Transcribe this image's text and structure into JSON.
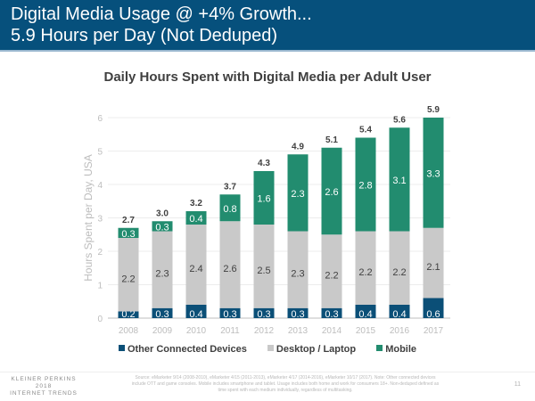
{
  "header": {
    "line1": "Digital Media Usage @ +4% Growth...",
    "line2": "5.9 Hours per Day (Not Deduped)"
  },
  "colors": {
    "header_bg": "#06507c",
    "other": "#0b4f77",
    "desktop": "#c9c9c9",
    "mobile": "#228c6f"
  },
  "chart_data": {
    "type": "bar",
    "stacked": true,
    "title": "Daily Hours Spent with Digital Media per Adult User",
    "xlabel": "",
    "ylabel": "Hours Spent per Day, USA",
    "ylim": [
      0,
      6
    ],
    "yticks": [
      "0",
      "1",
      "2",
      "3",
      "4",
      "5",
      "6"
    ],
    "grid": true,
    "legend_position": "bottom",
    "categories": [
      "2008",
      "2009",
      "2010",
      "2011",
      "2012",
      "2013",
      "2014",
      "2015",
      "2016",
      "2017"
    ],
    "series": [
      {
        "name": "Other Connected Devices",
        "values": [
          0.2,
          0.3,
          0.4,
          0.3,
          0.3,
          0.3,
          0.3,
          0.4,
          0.4,
          0.6
        ]
      },
      {
        "name": "Desktop / Laptop",
        "values": [
          2.2,
          2.3,
          2.4,
          2.6,
          2.5,
          2.3,
          2.2,
          2.2,
          2.2,
          2.1
        ]
      },
      {
        "name": "Mobile",
        "values": [
          0.3,
          0.3,
          0.4,
          0.8,
          1.6,
          2.3,
          2.6,
          2.8,
          3.1,
          3.3
        ]
      }
    ],
    "totals": [
      "2.7",
      "3.0",
      "3.2",
      "3.7",
      "4.3",
      "4.9",
      "5.1",
      "5.4",
      "5.6",
      "5.9"
    ]
  },
  "legend": {
    "items": [
      {
        "label": "Other Connected Devices",
        "color": "#0b4f77"
      },
      {
        "label": "Desktop / Laptop",
        "color": "#c9c9c9"
      },
      {
        "label": "Mobile",
        "color": "#228c6f"
      }
    ]
  },
  "footer": {
    "brand_line1": "KLEINER PERKINS",
    "brand_line2": "2018",
    "brand_line3": "INTERNET TRENDS",
    "source": "Source: eMarketer 9/14 (2008-2010), eMarketer 4/15 (2011-2013), eMarketer 4/17 (2014-2016), eMarketer 10/17 (2017). Note: Other connected devices include OTT and game consoles. Mobile includes smartphone and tablet. Usage includes both home and work for consumers 18+. Non-deduped defined as time spent with each medium individually, regardless of multitasking.",
    "page_number": "11"
  }
}
